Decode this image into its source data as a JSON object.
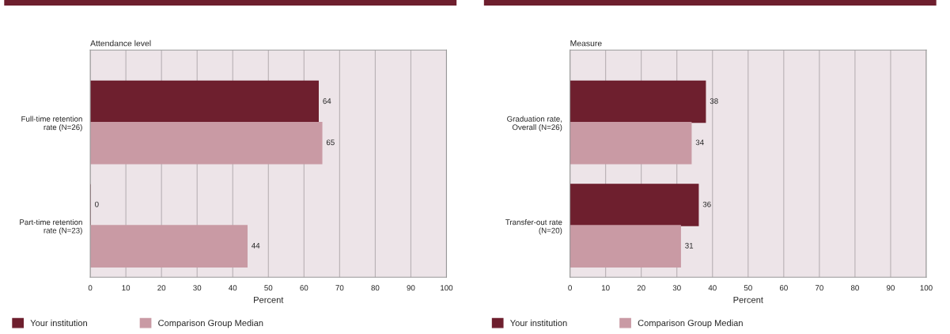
{
  "chart_data": [
    {
      "type": "bar",
      "orientation": "horizontal",
      "ylabel": "Attendance level",
      "xlabel": "Percent",
      "categories": [
        "Full-time retention\nrate (N=26)",
        "Part-time retention\nrate (N=23)"
      ],
      "series": [
        {
          "name": "Your institution",
          "color": "#6e1f2e",
          "values": [
            64,
            0
          ]
        },
        {
          "name": "Comparison Group Median",
          "color": "#c99aa4",
          "values": [
            65,
            44
          ]
        }
      ],
      "xlim": [
        0,
        100
      ],
      "xticks": [
        0,
        10,
        20,
        30,
        40,
        50,
        60,
        70,
        80,
        90,
        100
      ],
      "grid": "x",
      "data_labels": true,
      "legend": "bottom"
    },
    {
      "type": "bar",
      "orientation": "horizontal",
      "ylabel": "Measure",
      "xlabel": "Percent",
      "categories": [
        "Graduation rate,\nOverall (N=26)",
        "Transfer-out rate\n(N=20)"
      ],
      "series": [
        {
          "name": "Your institution",
          "color": "#6e1f2e",
          "values": [
            38,
            36
          ]
        },
        {
          "name": "Comparison Group Median",
          "color": "#c99aa4",
          "values": [
            34,
            31
          ]
        }
      ],
      "xlim": [
        0,
        100
      ],
      "xticks": [
        0,
        10,
        20,
        30,
        40,
        50,
        60,
        70,
        80,
        90,
        100
      ],
      "grid": "x",
      "data_labels": true,
      "legend": "bottom"
    }
  ]
}
